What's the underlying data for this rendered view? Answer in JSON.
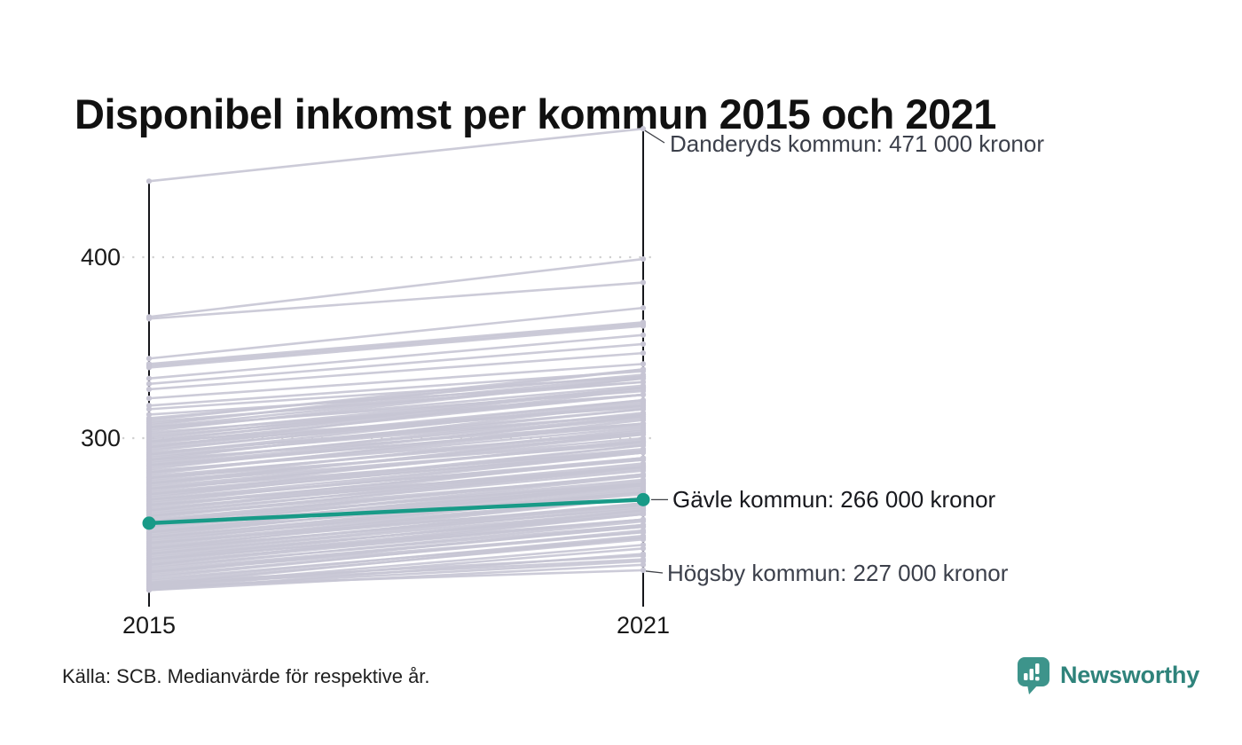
{
  "title": "Disponibel inkomst per kommun 2015 och 2021",
  "source_note": "Källa: SCB. Medianvärde för respektive år.",
  "brand": {
    "name": "Newsworthy",
    "icon": "newsworthy-speech-bubble-chart-icon",
    "icon_color": "#3d948b",
    "text_color": "#2f837b"
  },
  "chart_data": {
    "type": "line",
    "subtype": "slopegraph",
    "x": [
      2015,
      2021
    ],
    "x_labels": [
      "2015",
      "2021"
    ],
    "y_ticks": [
      400,
      300
    ],
    "y_tick_labels": [
      "400",
      "300"
    ],
    "ylim": [
      216,
      471
    ],
    "grid": "dotted-horizontal",
    "unit": "tusen kronor",
    "colors": {
      "line_grey": "#c7c5d4",
      "highlight_teal": "#189a87",
      "axis": "#15161a",
      "gridline": "#cfcfcf",
      "leader": "#3f4147"
    },
    "annotations": [
      {
        "id": "danderyd",
        "label": "Danderyds kommun: 471 000 kronor",
        "year": 2021,
        "value": 471
      },
      {
        "id": "gavle",
        "label": "Gävle kommun: 266 000 kronor",
        "year": 2021,
        "value": 266,
        "highlight": true
      },
      {
        "id": "hogsby",
        "label": "Högsby kommun: 227 000 kronor",
        "year": 2021,
        "value": 227
      }
    ],
    "highlight_series": {
      "name": "Gävle kommun",
      "values": [
        253,
        266
      ]
    },
    "series_lines": [
      [
        442,
        471
      ],
      [
        367,
        399
      ],
      [
        366,
        386
      ],
      [
        344,
        372
      ],
      [
        341,
        364
      ],
      [
        340,
        363
      ],
      [
        339,
        362
      ],
      [
        333,
        357
      ],
      [
        330,
        352
      ],
      [
        327,
        347
      ],
      [
        322,
        341
      ],
      [
        318,
        337
      ],
      [
        316,
        334
      ],
      [
        313,
        331
      ],
      [
        311,
        335
      ],
      [
        310,
        338
      ],
      [
        309,
        331
      ],
      [
        308,
        334
      ],
      [
        307,
        338
      ],
      [
        306,
        326
      ],
      [
        306,
        333
      ],
      [
        305,
        329
      ],
      [
        304,
        333
      ],
      [
        303,
        324
      ],
      [
        302,
        328
      ],
      [
        301,
        324
      ],
      [
        300,
        328
      ],
      [
        299,
        324
      ],
      [
        298,
        328
      ],
      [
        298,
        317
      ],
      [
        297,
        324
      ],
      [
        296,
        318
      ],
      [
        295,
        321
      ],
      [
        295,
        327
      ],
      [
        294,
        318
      ],
      [
        293,
        321
      ],
      [
        292,
        313
      ],
      [
        291,
        316
      ],
      [
        291,
        320
      ],
      [
        290,
        313
      ],
      [
        289,
        316
      ],
      [
        288,
        308
      ],
      [
        288,
        319
      ],
      [
        287,
        312
      ],
      [
        286,
        314
      ],
      [
        285,
        307
      ],
      [
        285,
        311
      ],
      [
        284,
        308
      ],
      [
        283,
        312
      ],
      [
        282,
        303
      ],
      [
        281,
        308
      ],
      [
        281,
        306
      ],
      [
        280,
        310
      ],
      [
        279,
        302
      ],
      [
        278,
        304
      ],
      [
        278,
        298
      ],
      [
        277,
        305
      ],
      [
        276,
        300
      ],
      [
        275,
        302
      ],
      [
        275,
        297
      ],
      [
        274,
        303
      ],
      [
        273,
        298
      ],
      [
        272,
        293
      ],
      [
        272,
        298
      ],
      [
        271,
        299
      ],
      [
        270,
        294
      ],
      [
        269,
        296
      ],
      [
        269,
        292
      ],
      [
        268,
        293
      ],
      [
        267,
        296
      ],
      [
        266,
        288
      ],
      [
        266,
        292
      ],
      [
        265,
        289
      ],
      [
        264,
        292
      ],
      [
        263,
        284
      ],
      [
        263,
        288
      ],
      [
        262,
        289
      ],
      [
        261,
        284
      ],
      [
        260,
        286
      ],
      [
        260,
        289
      ],
      [
        259,
        283
      ],
      [
        258,
        285
      ],
      [
        257,
        279
      ],
      [
        257,
        282
      ],
      [
        256,
        284
      ],
      [
        255,
        279
      ],
      [
        254,
        280
      ],
      [
        254,
        275
      ],
      [
        253,
        280
      ],
      [
        252,
        277
      ],
      [
        251,
        279
      ],
      [
        251,
        274
      ],
      [
        250,
        276
      ],
      [
        249,
        273
      ],
      [
        248,
        275
      ],
      [
        248,
        270
      ],
      [
        247,
        272
      ],
      [
        246,
        274
      ],
      [
        245,
        269
      ],
      [
        245,
        271
      ],
      [
        244,
        267
      ],
      [
        243,
        270
      ],
      [
        242,
        267
      ],
      [
        242,
        263
      ],
      [
        241,
        267
      ],
      [
        240,
        264
      ],
      [
        239,
        267
      ],
      [
        239,
        261
      ],
      [
        238,
        263
      ],
      [
        237,
        264
      ],
      [
        236,
        260
      ],
      [
        236,
        262
      ],
      [
        235,
        258
      ],
      [
        234,
        259
      ],
      [
        233,
        260
      ],
      [
        233,
        255
      ],
      [
        232,
        258
      ],
      [
        231,
        255
      ],
      [
        230,
        255
      ],
      [
        230,
        258
      ],
      [
        229,
        252
      ],
      [
        228,
        254
      ],
      [
        227,
        251
      ],
      [
        226,
        251
      ],
      [
        226,
        248
      ],
      [
        225,
        252
      ],
      [
        224,
        248
      ],
      [
        223,
        249
      ],
      [
        222,
        245
      ],
      [
        221,
        246
      ],
      [
        220,
        244
      ],
      [
        219,
        245
      ],
      [
        218,
        241
      ],
      [
        217,
        239
      ],
      [
        216,
        236
      ],
      [
        216,
        230
      ],
      [
        217,
        232
      ],
      [
        219,
        233
      ],
      [
        220,
        235
      ],
      [
        218,
        227
      ]
    ]
  }
}
